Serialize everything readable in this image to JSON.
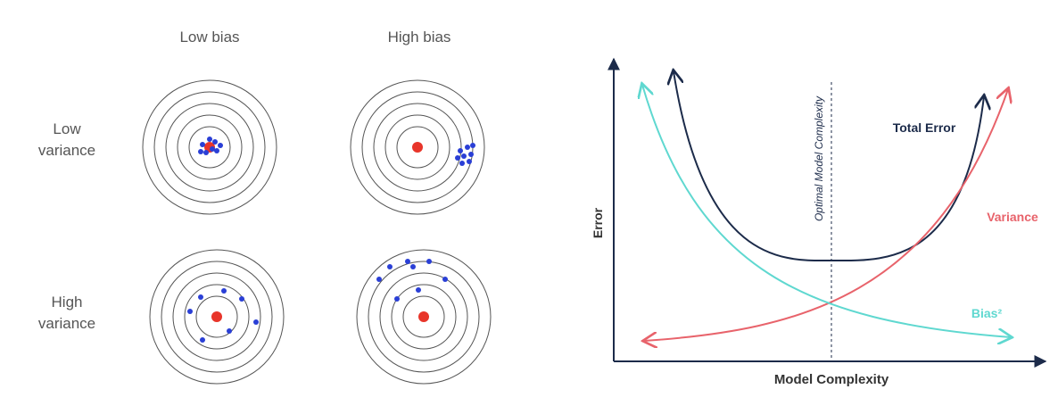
{
  "targets": {
    "columns": [
      "Low bias",
      "High bias"
    ],
    "rows": [
      "Low variance",
      "High variance"
    ]
  },
  "tradeoff": {
    "y_axis": "Error",
    "x_axis": "Model Complexity",
    "optimum": "Optimal Model Complexity",
    "curves": [
      "Total Error",
      "Variance",
      "Bias²"
    ]
  }
}
